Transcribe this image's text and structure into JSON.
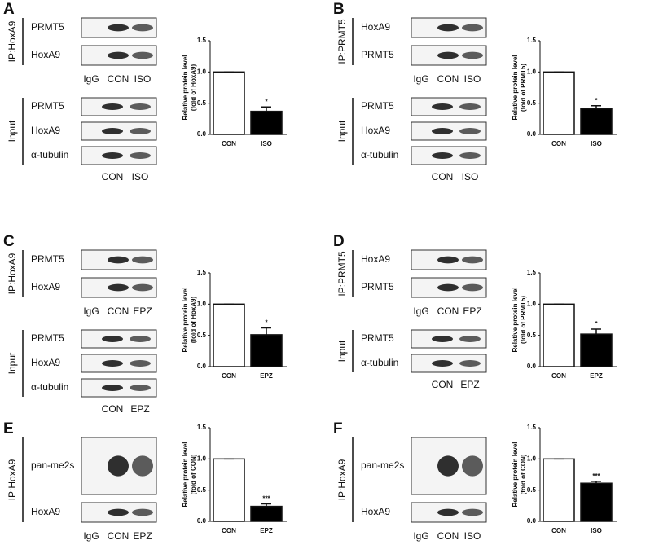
{
  "panels": [
    {
      "letter": "A",
      "ip_label": "IP:HoxA9",
      "ip_blots": [
        "PRMT5",
        "HoxA9"
      ],
      "ip_lanes": [
        "IgG",
        "CON",
        "ISO"
      ],
      "input_label": "Input",
      "input_blots": [
        "PRMT5",
        "HoxA9",
        "α-tubulin"
      ],
      "input_lanes": [
        "CON",
        "ISO"
      ],
      "chart": {
        "type": "bar",
        "y_label": [
          "Relative protein level",
          "(fold of HoxA9)"
        ],
        "categories": [
          "CON",
          "ISO"
        ],
        "values": [
          1,
          0.37
        ],
        "errors": [
          0,
          0.07
        ],
        "annotation": "*",
        "colors": [
          "#ffffff",
          "#000000"
        ],
        "ylim": [
          0,
          1.5
        ],
        "yticks": [
          {
            "value": 0,
            "label": "0.0"
          },
          {
            "value": 0.5,
            "label": "0.5"
          },
          {
            "value": 1,
            "label": "1.0"
          },
          {
            "value": 1.5,
            "label": "1.5"
          }
        ]
      }
    },
    {
      "letter": "B",
      "ip_label": "IP:PRMT5",
      "ip_blots": [
        "HoxA9",
        "PRMT5"
      ],
      "ip_lanes": [
        "IgG",
        "CON",
        "ISO"
      ],
      "input_label": "Input",
      "input_blots": [
        "PRMT5",
        "HoxA9",
        "α-tubulin"
      ],
      "input_lanes": [
        "CON",
        "ISO"
      ],
      "chart": {
        "type": "bar",
        "y_label": [
          "Relative protein level",
          "(fold of PRMT5)"
        ],
        "categories": [
          "CON",
          "ISO"
        ],
        "values": [
          1,
          0.41
        ],
        "errors": [
          0,
          0.05
        ],
        "annotation": "*",
        "colors": [
          "#ffffff",
          "#000000"
        ],
        "ylim": [
          0,
          1.5
        ],
        "yticks": [
          {
            "value": 0,
            "label": "0.0"
          },
          {
            "value": 0.5,
            "label": "0.5"
          },
          {
            "value": 1,
            "label": "1.0"
          },
          {
            "value": 1.5,
            "label": "1.5"
          }
        ]
      }
    },
    {
      "letter": "C",
      "ip_label": "IP:HoxA9",
      "ip_blots": [
        "PRMT5",
        "HoxA9"
      ],
      "ip_lanes": [
        "IgG",
        "CON",
        "EPZ"
      ],
      "input_label": "Input",
      "input_blots": [
        "PRMT5",
        "HoxA9",
        "α-tubulin"
      ],
      "input_lanes": [
        "CON",
        "EPZ"
      ],
      "chart": {
        "type": "bar",
        "y_label": [
          "Relative protein level",
          "(fold of HoxA9)"
        ],
        "categories": [
          "CON",
          "EPZ"
        ],
        "values": [
          1,
          0.51
        ],
        "errors": [
          0,
          0.11
        ],
        "annotation": "*",
        "colors": [
          "#ffffff",
          "#000000"
        ],
        "ylim": [
          0,
          1.5
        ],
        "yticks": [
          {
            "value": 0,
            "label": "0.0"
          },
          {
            "value": 0.5,
            "label": "0.5"
          },
          {
            "value": 1,
            "label": "1.0"
          },
          {
            "value": 1.5,
            "label": "1.5"
          }
        ]
      }
    },
    {
      "letter": "D",
      "ip_label": "IP:PRMT5",
      "ip_blots": [
        "HoxA9",
        "PRMT5"
      ],
      "ip_lanes": [
        "IgG",
        "CON",
        "EPZ"
      ],
      "input_label": "Input",
      "input_blots": [
        "PRMT5",
        "α-tubulin"
      ],
      "input_lanes": [
        "CON",
        "EPZ"
      ],
      "chart": {
        "type": "bar",
        "y_label": [
          "Relative protein level",
          "(fold of PRMT5)"
        ],
        "categories": [
          "CON",
          "EPZ"
        ],
        "values": [
          1,
          0.52
        ],
        "errors": [
          0,
          0.08
        ],
        "annotation": "*",
        "colors": [
          "#ffffff",
          "#000000"
        ],
        "ylim": [
          0,
          1.5
        ],
        "yticks": [
          {
            "value": 0,
            "label": "0.0"
          },
          {
            "value": 0.5,
            "label": "0.5"
          },
          {
            "value": 1,
            "label": "1.0"
          },
          {
            "value": 1.5,
            "label": "1.5"
          }
        ]
      }
    },
    {
      "letter": "E",
      "ip_label": "IP:HoxA9",
      "ip_blots": [
        "pan-me2s",
        "HoxA9"
      ],
      "ip_lanes": [
        "IgG",
        "CON",
        "EPZ"
      ],
      "chart": {
        "type": "bar",
        "y_label": [
          "Relative protein level",
          "(fold of CON)"
        ],
        "categories": [
          "CON",
          "EPZ"
        ],
        "values": [
          1,
          0.24
        ],
        "errors": [
          0,
          0.04
        ],
        "annotation": "***",
        "colors": [
          "#ffffff",
          "#000000"
        ],
        "ylim": [
          0,
          1.5
        ],
        "yticks": [
          {
            "value": 0,
            "label": "0.0"
          },
          {
            "value": 0.5,
            "label": "0.5"
          },
          {
            "value": 1,
            "label": "1.0"
          },
          {
            "value": 1.5,
            "label": "1.5"
          }
        ]
      }
    },
    {
      "letter": "F",
      "ip_label": "IP:HoxA9",
      "ip_blots": [
        "pan-me2s",
        "HoxA9"
      ],
      "ip_lanes": [
        "IgG",
        "CON",
        "ISO"
      ],
      "chart": {
        "type": "bar",
        "y_label": [
          "Relative protein level",
          "(fold of CON)"
        ],
        "categories": [
          "CON",
          "ISO"
        ],
        "values": [
          1,
          0.61
        ],
        "errors": [
          0,
          0.03
        ],
        "annotation": "***",
        "colors": [
          "#ffffff",
          "#000000"
        ],
        "ylim": [
          0,
          1.5
        ],
        "yticks": [
          {
            "value": 0,
            "label": "0.0"
          },
          {
            "value": 0.5,
            "label": "0.5"
          },
          {
            "value": 1,
            "label": "1.0"
          },
          {
            "value": 1.5,
            "label": "1.5"
          }
        ]
      }
    }
  ]
}
